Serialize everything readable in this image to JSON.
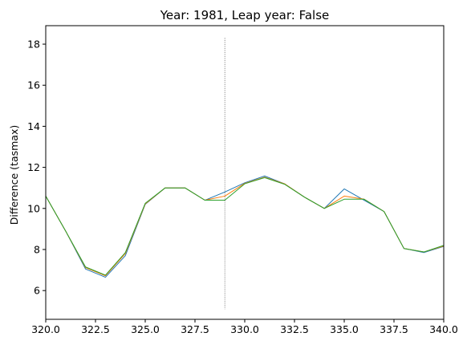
{
  "chart_data": {
    "type": "line",
    "title": "Year: 1981, Leap year: False",
    "xlabel": "",
    "ylabel": "Difference (tasmax)",
    "xlim": [
      320.0,
      340.0
    ],
    "ylim": [
      4.6,
      18.9
    ],
    "xticks": [
      320.0,
      322.5,
      325.0,
      327.5,
      330.0,
      332.5,
      335.0,
      337.5,
      340.0
    ],
    "xtick_labels": [
      "320.0",
      "322.5",
      "325.0",
      "327.5",
      "330.0",
      "332.5",
      "335.0",
      "337.5",
      "340.0"
    ],
    "yticks": [
      6,
      8,
      10,
      12,
      14,
      16,
      18
    ],
    "ytick_labels": [
      "6",
      "8",
      "10",
      "12",
      "14",
      "16",
      "18"
    ],
    "grid": false,
    "legend": "none",
    "vline": {
      "x": 329,
      "y_range": [
        5.1,
        18.3
      ],
      "style": "dotted",
      "color": "#555555"
    },
    "x": [
      320,
      321,
      322,
      323,
      324,
      325,
      326,
      327,
      328,
      329,
      330,
      331,
      332,
      333,
      334,
      335,
      336,
      337,
      338,
      339,
      340
    ],
    "series": [
      {
        "color": "#1f77b4",
        "values": [
          10.6,
          8.9,
          7.05,
          6.65,
          7.7,
          10.2,
          11.0,
          11.0,
          10.4,
          10.8,
          11.25,
          11.58,
          11.2,
          10.55,
          10.0,
          10.95,
          10.4,
          9.85,
          8.05,
          7.85,
          8.15
        ]
      },
      {
        "color": "#ff7f0e",
        "values": [
          10.6,
          8.9,
          7.12,
          6.72,
          7.8,
          10.22,
          11.0,
          11.0,
          10.4,
          10.6,
          11.22,
          11.52,
          11.2,
          10.55,
          10.0,
          10.6,
          10.45,
          9.85,
          8.05,
          7.88,
          8.17
        ]
      },
      {
        "color": "#2ca02c",
        "values": [
          10.6,
          8.9,
          7.15,
          6.75,
          7.85,
          10.25,
          11.0,
          11.0,
          10.4,
          10.4,
          11.2,
          11.5,
          11.18,
          10.55,
          10.0,
          10.45,
          10.45,
          9.85,
          8.05,
          7.88,
          8.2
        ]
      }
    ]
  }
}
